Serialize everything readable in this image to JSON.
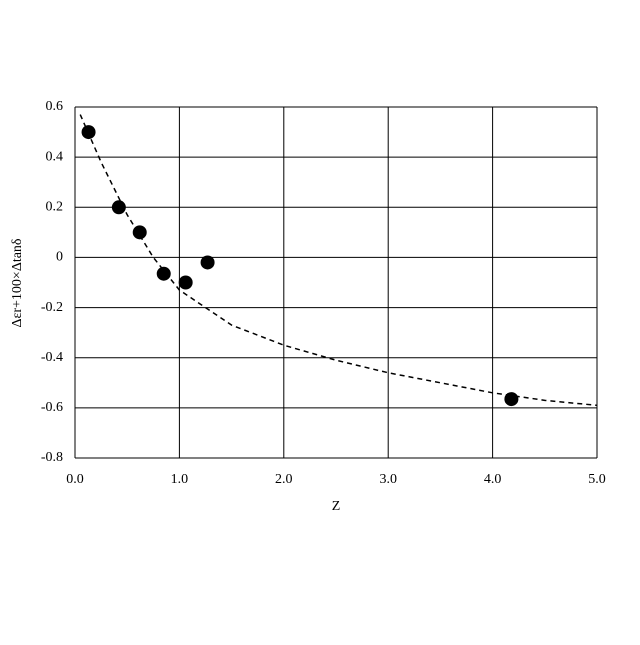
{
  "chart_data": {
    "type": "scatter",
    "xlabel": "Z",
    "ylabel": "Δεr+100×Δtanδ",
    "series": [
      {
        "color": "#000000",
        "x": [
          0.13,
          0.42,
          0.62,
          0.85,
          1.06,
          1.27,
          4.18
        ],
        "values": [
          0.5,
          0.2,
          0.1,
          -0.065,
          -0.1,
          -0.02,
          -0.565
        ]
      },
      {
        "color": "#000000",
        "style": "dashed",
        "x": [
          0.05,
          0.25,
          0.5,
          0.75,
          1.0,
          1.25,
          1.5,
          2.0,
          2.5,
          3.0,
          3.5,
          4.0,
          4.5,
          5.0
        ],
        "values": [
          0.57,
          0.38,
          0.17,
          0.0,
          -0.13,
          -0.2,
          -0.27,
          -0.35,
          -0.41,
          -0.46,
          -0.5,
          -0.54,
          -0.57,
          -0.59
        ]
      }
    ],
    "xlim": [
      0,
      5
    ],
    "ylim": [
      -0.8,
      0.6
    ],
    "xticks": [
      {
        "value": 0,
        "label": "0.0"
      },
      {
        "value": 1,
        "label": "1.0"
      },
      {
        "value": 2,
        "label": "2.0"
      },
      {
        "value": 3,
        "label": "3.0"
      },
      {
        "value": 4,
        "label": "4.0"
      },
      {
        "value": 5,
        "label": "5.0"
      }
    ],
    "yticks": [
      -0.8,
      -0.6,
      -0.4,
      -0.2,
      0,
      0.2,
      0.4,
      0.6
    ],
    "grid": true
  }
}
